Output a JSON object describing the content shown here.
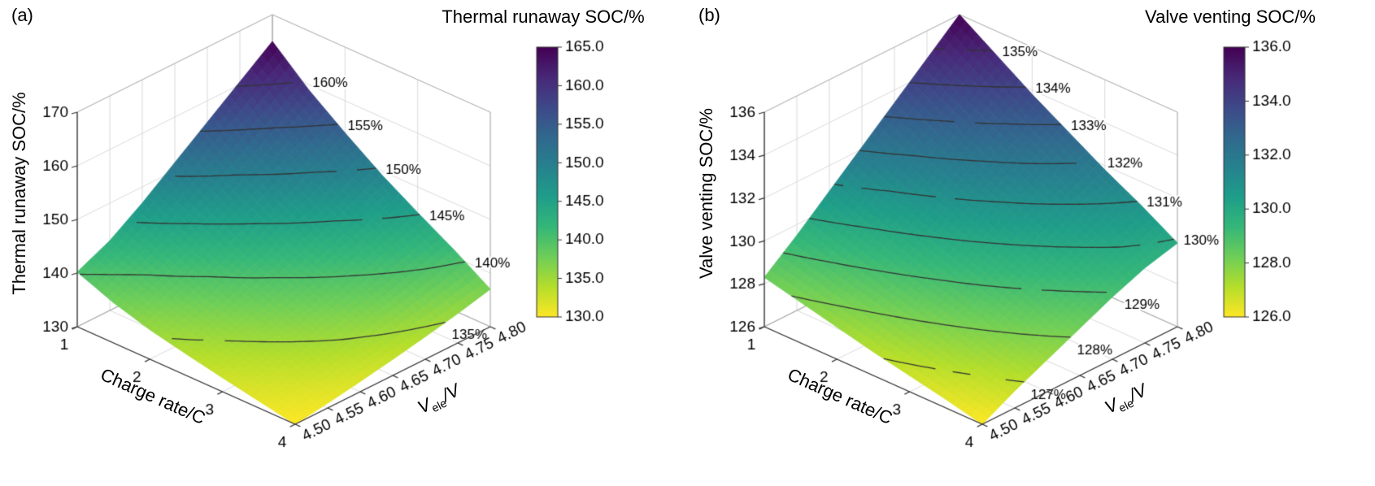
{
  "panels": [
    {
      "label": "(a)",
      "colorbar_title": "Thermal runaway SOC/%",
      "z_axis_title": "Thermal runaway SOC/%",
      "x_axis_title": "Charge rate/C",
      "y_axis_title": {
        "pre": "V",
        "sub": "ele",
        "post": "/V"
      }
    },
    {
      "label": "(b)",
      "colorbar_title": "Valve venting SOC/%",
      "z_axis_title": "Valve venting SOC/%",
      "x_axis_title": "Charge rate/C",
      "y_axis_title": {
        "pre": "V",
        "sub": "ele",
        "post": "/V"
      }
    }
  ],
  "style": {
    "background": "#ffffff",
    "colormap_low_to_high": [
      "#fde725",
      "#b5de2b",
      "#6ece58",
      "#35b779",
      "#1f9e89",
      "#26828e",
      "#31688e",
      "#3e4989",
      "#482878",
      "#440154"
    ],
    "contour_line_color": "#333333",
    "grid_color": "#d9d9d9",
    "pane_border_color": "#b0b0b0",
    "axis_color": "#333333",
    "text_color": "#000000"
  },
  "chart_data": [
    {
      "type": "surface",
      "title": "Thermal runaway SOC/%",
      "xlabel": "Charge rate/C",
      "ylabel": "Vele/V",
      "zlabel": "Thermal runaway SOC/%",
      "x_charge_rate": [
        1,
        1.5,
        2,
        2.5,
        3,
        3.5,
        4
      ],
      "y_voltage_V": [
        4.5,
        4.55,
        4.6,
        4.65,
        4.7,
        4.75,
        4.8
      ],
      "z_soc_percent": [
        [
          140.2,
          143.0,
          147.0,
          151.5,
          156.0,
          160.5,
          165.0
        ],
        [
          137.5,
          140.3,
          143.6,
          147.2,
          151.0,
          155.05,
          159.0
        ],
        [
          135.5,
          137.8,
          140.6,
          143.7,
          147.0,
          150.4,
          154.0
        ],
        [
          134.0,
          135.9,
          138.2,
          140.7,
          143.4,
          146.3,
          149.3
        ],
        [
          132.6,
          134.2,
          136.1,
          138.2,
          140.4,
          142.8,
          145.2
        ],
        [
          131.3,
          132.6,
          134.1,
          135.7,
          137.5,
          139.4,
          141.3
        ],
        [
          130.0,
          130.9,
          131.9,
          133.0,
          134.2,
          135.5,
          137.0
        ]
      ],
      "zlim": [
        130,
        170
      ],
      "xticks": {
        "values": [
          1,
          2,
          3,
          4
        ],
        "labels": [
          "1",
          "2",
          "3",
          "4"
        ]
      },
      "yticks": {
        "values": [
          4.5,
          4.55,
          4.6,
          4.65,
          4.7,
          4.75,
          4.8
        ],
        "labels": [
          "4.50",
          "4.55",
          "4.60",
          "4.65",
          "4.70",
          "4.75",
          "4.80"
        ]
      },
      "zticks": {
        "values": [
          130,
          140,
          150,
          160,
          170
        ],
        "labels": [
          "130",
          "140",
          "150",
          "160",
          "170"
        ]
      },
      "contours": {
        "levels": [
          135,
          140,
          145,
          150,
          155,
          160
        ],
        "labels": [
          "135%",
          "140%",
          "145%",
          "150%",
          "155%",
          "160%"
        ]
      },
      "colorbar": {
        "min": 130,
        "max": 165,
        "tick_values": [
          130,
          135,
          140,
          145,
          150,
          155,
          160,
          165
        ],
        "tick_labels": [
          "130.0",
          "135.0",
          "140.0",
          "145.0",
          "150.0",
          "155.0",
          "160.0",
          "165.0"
        ]
      }
    },
    {
      "type": "surface",
      "title": "Valve venting SOC/%",
      "xlabel": "Charge rate/C",
      "ylabel": "Vele/V",
      "zlabel": "Valve venting SOC/%",
      "x_charge_rate": [
        1,
        1.5,
        2,
        2.5,
        3,
        3.5,
        4
      ],
      "y_voltage_V": [
        4.5,
        4.55,
        4.6,
        4.65,
        4.7,
        4.75,
        4.8
      ],
      "z_soc_percent": [
        [
          128.3,
          129.5,
          130.8,
          132.1,
          133.4,
          134.7,
          136.0
        ],
        [
          127.9,
          129.02,
          130.15,
          131.3,
          132.5,
          133.7,
          134.9
        ],
        [
          127.5,
          128.55,
          129.6,
          130.65,
          131.7,
          132.75,
          133.8
        ],
        [
          127.1,
          128.1,
          129.05,
          130.02,
          130.95,
          131.9,
          132.8
        ],
        [
          126.75,
          127.65,
          128.55,
          129.4,
          130.25,
          131.05,
          131.8
        ],
        [
          126.4,
          127.2,
          128.02,
          128.8,
          129.55,
          130.3,
          130.9
        ],
        [
          126.0,
          126.8,
          127.5,
          128.2,
          128.9,
          129.5,
          129.9
        ]
      ],
      "zlim": [
        126,
        136
      ],
      "xticks": {
        "values": [
          1,
          2,
          3,
          4
        ],
        "labels": [
          "1",
          "2",
          "3",
          "4"
        ]
      },
      "yticks": {
        "values": [
          4.5,
          4.55,
          4.6,
          4.65,
          4.7,
          4.75,
          4.8
        ],
        "labels": [
          "4.50",
          "4.55",
          "4.60",
          "4.65",
          "4.70",
          "4.75",
          "4.80"
        ]
      },
      "zticks": {
        "values": [
          126,
          128,
          130,
          132,
          134,
          136
        ],
        "labels": [
          "126",
          "128",
          "130",
          "132",
          "134",
          "136"
        ]
      },
      "contours": {
        "levels": [
          127,
          128,
          129,
          130,
          131,
          132,
          133,
          134,
          135
        ],
        "labels": [
          "127%",
          "128%",
          "129%",
          "130%",
          "131%",
          "132%",
          "133%",
          "134%",
          "135%"
        ]
      },
      "colorbar": {
        "min": 126,
        "max": 136,
        "tick_values": [
          126,
          128,
          130,
          132,
          134,
          136
        ],
        "tick_labels": [
          "126.0",
          "128.0",
          "130.0",
          "132.0",
          "134.0",
          "136.0"
        ]
      }
    }
  ]
}
